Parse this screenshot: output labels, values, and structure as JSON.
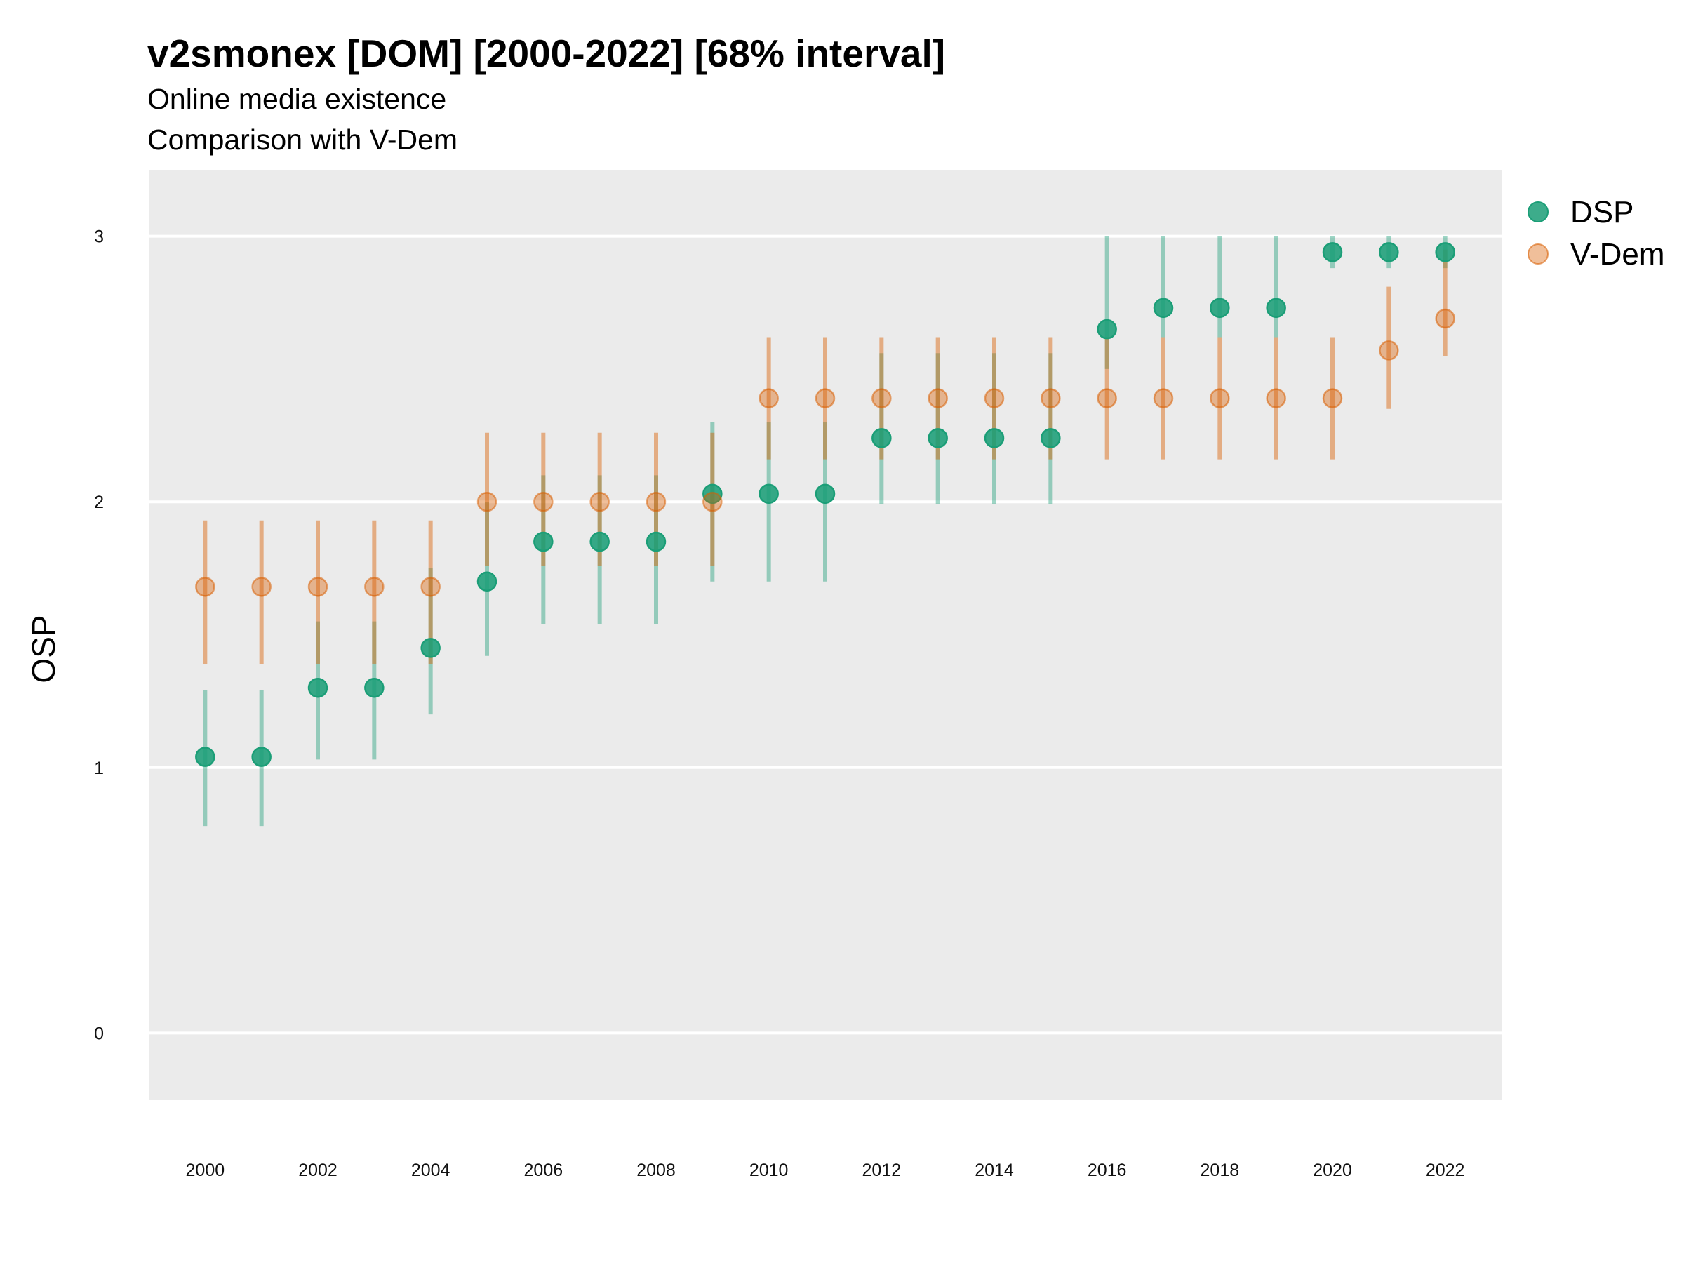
{
  "chart_data": {
    "type": "scatter",
    "title": "v2smonex [DOM] [2000-2022] [68% interval]",
    "subtitle_lines": [
      "Online media existence",
      "Comparison with V-Dem"
    ],
    "xlabel": "",
    "ylabel": "OSP",
    "xlim": [
      1999,
      2023
    ],
    "ylim": [
      -0.25,
      3.25
    ],
    "x_ticks": [
      2000,
      2002,
      2004,
      2006,
      2008,
      2010,
      2012,
      2014,
      2016,
      2018,
      2020,
      2022
    ],
    "x_tick_labels": [
      "2000",
      "2002",
      "2004",
      "2006",
      "2008",
      "2010",
      "2012",
      "2014",
      "2016",
      "2018",
      "2020",
      "2022"
    ],
    "y_ticks": [
      0,
      1,
      2,
      3
    ],
    "y_tick_labels": [
      "0",
      "1",
      "2",
      "3"
    ],
    "grid": true,
    "legend_position": "right-top",
    "x": [
      2000,
      2001,
      2002,
      2003,
      2004,
      2005,
      2006,
      2007,
      2008,
      2009,
      2010,
      2011,
      2012,
      2013,
      2014,
      2015,
      2016,
      2017,
      2018,
      2019,
      2020,
      2021,
      2022
    ],
    "series": [
      {
        "name": "DSP",
        "color": "#1b9e77",
        "values": [
          1.04,
          1.04,
          1.3,
          1.3,
          1.45,
          1.7,
          1.85,
          1.85,
          1.85,
          2.03,
          2.03,
          2.03,
          2.24,
          2.24,
          2.24,
          2.24,
          2.65,
          2.73,
          2.73,
          2.73,
          2.94,
          2.94,
          2.94
        ],
        "lower": [
          0.78,
          0.78,
          1.03,
          1.03,
          1.2,
          1.42,
          1.54,
          1.54,
          1.54,
          1.7,
          1.7,
          1.7,
          1.99,
          1.99,
          1.99,
          1.99,
          2.5,
          2.62,
          2.62,
          2.62,
          2.88,
          2.88,
          2.88
        ],
        "upper": [
          1.29,
          1.29,
          1.55,
          1.55,
          1.75,
          2.0,
          2.1,
          2.1,
          2.1,
          2.3,
          2.3,
          2.3,
          2.56,
          2.56,
          2.56,
          2.56,
          3.0,
          3.0,
          3.0,
          3.0,
          3.0,
          3.0,
          3.0
        ]
      },
      {
        "name": "V-Dem",
        "color": "#d95f02",
        "values": [
          1.68,
          1.68,
          1.68,
          1.68,
          1.68,
          2.0,
          2.0,
          2.0,
          2.0,
          2.0,
          2.39,
          2.39,
          2.39,
          2.39,
          2.39,
          2.39,
          2.39,
          2.39,
          2.39,
          2.39,
          2.39,
          2.57,
          2.69
        ],
        "lower": [
          1.39,
          1.39,
          1.39,
          1.39,
          1.39,
          1.76,
          1.76,
          1.76,
          1.76,
          1.76,
          2.16,
          2.16,
          2.16,
          2.16,
          2.16,
          2.16,
          2.16,
          2.16,
          2.16,
          2.16,
          2.16,
          2.35,
          2.55
        ],
        "upper": [
          1.93,
          1.93,
          1.93,
          1.93,
          1.93,
          2.26,
          2.26,
          2.26,
          2.26,
          2.26,
          2.62,
          2.62,
          2.62,
          2.62,
          2.62,
          2.62,
          2.62,
          2.62,
          2.62,
          2.62,
          2.62,
          2.81,
          2.95
        ]
      }
    ]
  }
}
